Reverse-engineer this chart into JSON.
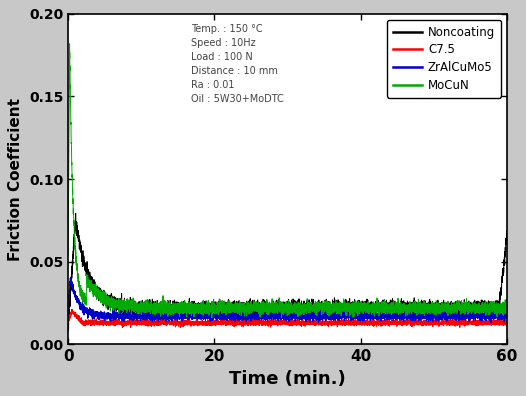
{
  "title": "",
  "xlabel": "Time (min.)",
  "ylabel": "Friction Coefficient",
  "xlim": [
    0,
    60
  ],
  "ylim": [
    0.0,
    0.2
  ],
  "ytick_vals": [
    0.0,
    0.05,
    0.1,
    0.15,
    0.2
  ],
  "ytick_labels": [
    "0.00",
    "0.05",
    "0.10",
    "0.15",
    "0.20"
  ],
  "xtick_vals": [
    0,
    20,
    40,
    60
  ],
  "xtick_labels": [
    "0",
    "20",
    "40",
    "60"
  ],
  "annotation_lines": [
    "Temp. : 150 °C",
    "Speed : 10Hz",
    "Load : 100 N",
    "Distance : 10 mm",
    "Ra : 0.01",
    "Oil : 5W30+MoDTC"
  ],
  "legend_labels": [
    "Noncoating",
    "C7.5",
    "ZrAlCuMo5",
    "MoCuN"
  ],
  "legend_colors": [
    "#000000",
    "#ff0000",
    "#0000cc",
    "#00aa00"
  ],
  "figure_facecolor": "#c8c8c8",
  "plot_facecolor": "#ffffff"
}
